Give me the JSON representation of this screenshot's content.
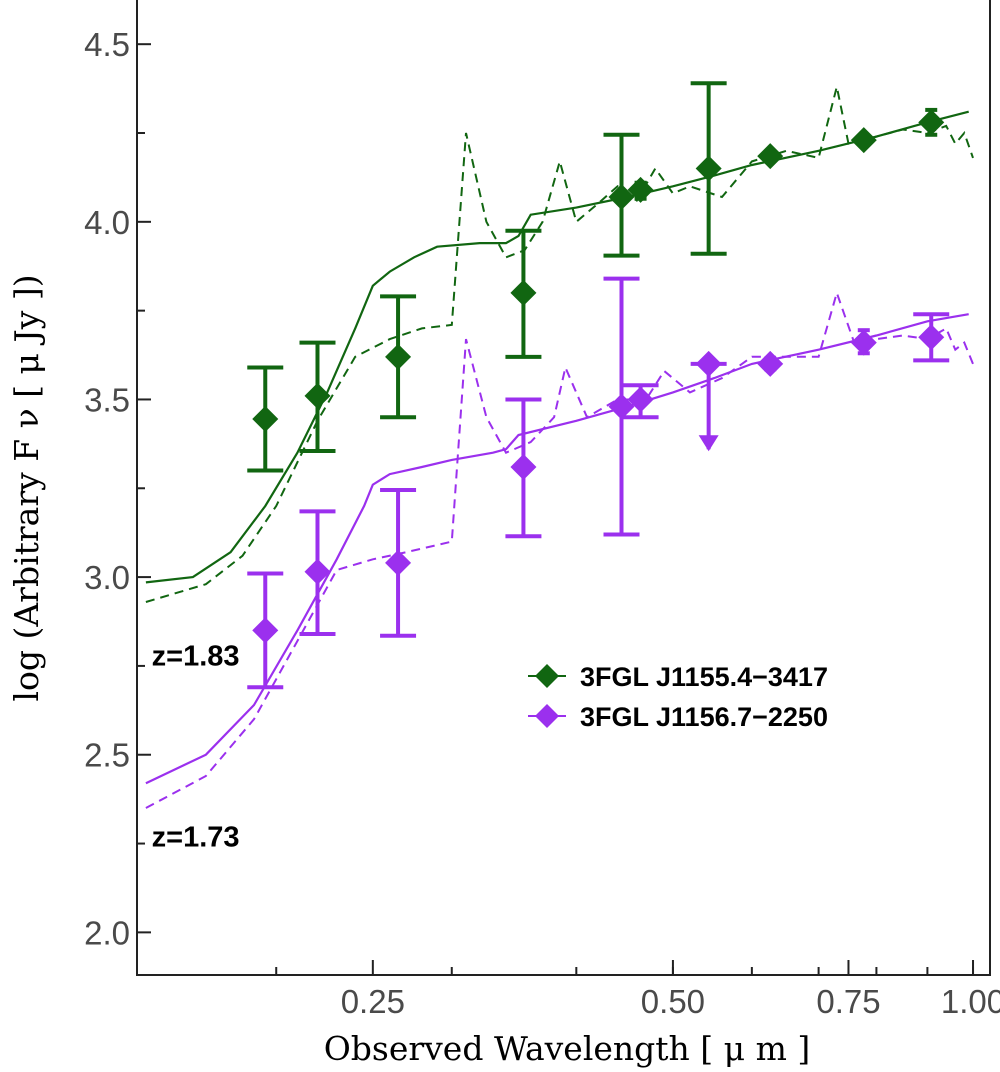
{
  "chart_data": {
    "type": "line",
    "title": "",
    "xlabel": "Observed Wavelength [ μ m ]",
    "ylabel": "log (Arbitrary F ν [ μ Jy ])",
    "xscale": "log",
    "xlim": [
      0.145,
      1.04
    ],
    "ylim": [
      1.88,
      4.63
    ],
    "x_ticks": [
      0.25,
      0.5,
      0.75,
      1.0
    ],
    "x_tick_labels": [
      "0.25",
      "0.50",
      "0.75",
      "1.00"
    ],
    "y_ticks": [
      2.0,
      2.5,
      3.0,
      3.5,
      4.0,
      4.5
    ],
    "y_tick_labels": [
      "2.0",
      "2.5",
      "3.0",
      "3.5",
      "4.0",
      "4.5"
    ],
    "legend_position": "center-right",
    "annotations": [
      {
        "text": "z=1.83",
        "x": 0.15,
        "y": 2.78
      },
      {
        "text": "z=1.73",
        "x": 0.15,
        "y": 2.27
      }
    ],
    "series": [
      {
        "name": "3FGL J1155.4−3417",
        "color": "#116611",
        "points": [
          {
            "x": 0.195,
            "y": 3.445,
            "lo": 3.3,
            "hi": 3.59
          },
          {
            "x": 0.22,
            "y": 3.51,
            "lo": 3.355,
            "hi": 3.66
          },
          {
            "x": 0.265,
            "y": 3.62,
            "lo": 3.45,
            "hi": 3.79
          },
          {
            "x": 0.354,
            "y": 3.8,
            "lo": 3.62,
            "hi": 3.975
          },
          {
            "x": 0.444,
            "y": 4.07,
            "lo": 3.905,
            "hi": 4.245
          },
          {
            "x": 0.464,
            "y": 4.09,
            "lo": 4.065,
            "hi": 4.11
          },
          {
            "x": 0.543,
            "y": 4.15,
            "lo": 3.91,
            "hi": 4.39
          },
          {
            "x": 0.626,
            "y": 4.185,
            "lo": 4.175,
            "hi": 4.195
          },
          {
            "x": 0.777,
            "y": 4.23,
            "lo": 4.22,
            "hi": 4.24
          },
          {
            "x": 0.908,
            "y": 4.28,
            "lo": 4.245,
            "hi": 4.315
          }
        ],
        "model_solid": [
          [
            0.148,
            2.985
          ],
          [
            0.165,
            3.0
          ],
          [
            0.18,
            3.07
          ],
          [
            0.195,
            3.2
          ],
          [
            0.21,
            3.35
          ],
          [
            0.225,
            3.52
          ],
          [
            0.24,
            3.7
          ],
          [
            0.25,
            3.82
          ],
          [
            0.26,
            3.86
          ],
          [
            0.275,
            3.9
          ],
          [
            0.29,
            3.93
          ],
          [
            0.32,
            3.94
          ],
          [
            0.34,
            3.94
          ],
          [
            0.35,
            3.96
          ],
          [
            0.36,
            4.02
          ],
          [
            0.4,
            4.04
          ],
          [
            0.45,
            4.07
          ],
          [
            0.5,
            4.1
          ],
          [
            0.55,
            4.13
          ],
          [
            0.6,
            4.16
          ],
          [
            0.7,
            4.2
          ],
          [
            0.8,
            4.24
          ],
          [
            0.9,
            4.28
          ],
          [
            0.99,
            4.31
          ]
        ],
        "model_dashed": [
          [
            0.148,
            2.93
          ],
          [
            0.17,
            2.98
          ],
          [
            0.185,
            3.06
          ],
          [
            0.2,
            3.2
          ],
          [
            0.22,
            3.44
          ],
          [
            0.24,
            3.62
          ],
          [
            0.26,
            3.67
          ],
          [
            0.28,
            3.7
          ],
          [
            0.3,
            3.71
          ],
          [
            0.31,
            4.25
          ],
          [
            0.325,
            4.0
          ],
          [
            0.34,
            3.9
          ],
          [
            0.355,
            3.92
          ],
          [
            0.37,
            4.0
          ],
          [
            0.385,
            4.17
          ],
          [
            0.4,
            4.0
          ],
          [
            0.42,
            4.05
          ],
          [
            0.44,
            4.1
          ],
          [
            0.46,
            4.06
          ],
          [
            0.48,
            4.15
          ],
          [
            0.5,
            4.08
          ],
          [
            0.52,
            4.1
          ],
          [
            0.56,
            4.07
          ],
          [
            0.6,
            4.17
          ],
          [
            0.65,
            4.2
          ],
          [
            0.7,
            4.18
          ],
          [
            0.73,
            4.38
          ],
          [
            0.75,
            4.22
          ],
          [
            0.8,
            4.24
          ],
          [
            0.85,
            4.26
          ],
          [
            0.9,
            4.25
          ],
          [
            0.94,
            4.27
          ],
          [
            0.96,
            4.22
          ],
          [
            0.98,
            4.25
          ],
          [
            1.0,
            4.18
          ]
        ]
      },
      {
        "name": "3FGL J1156.7−2250",
        "color": "#9b30ee",
        "points": [
          {
            "x": 0.195,
            "y": 2.85,
            "lo": 2.69,
            "hi": 3.01
          },
          {
            "x": 0.22,
            "y": 3.015,
            "lo": 2.84,
            "hi": 3.185
          },
          {
            "x": 0.265,
            "y": 3.04,
            "lo": 2.835,
            "hi": 3.245
          },
          {
            "x": 0.354,
            "y": 3.31,
            "lo": 3.115,
            "hi": 3.5
          },
          {
            "x": 0.444,
            "y": 3.48,
            "lo": 3.12,
            "hi": 3.84
          },
          {
            "x": 0.464,
            "y": 3.5,
            "lo": 3.45,
            "hi": 3.54
          },
          {
            "x": 0.543,
            "y": 3.6,
            "lo": 3.36,
            "hi": 3.6,
            "upper_limit": true
          },
          {
            "x": 0.626,
            "y": 3.6,
            "lo": 3.585,
            "hi": 3.615
          },
          {
            "x": 0.777,
            "y": 3.66,
            "lo": 3.63,
            "hi": 3.695
          },
          {
            "x": 0.908,
            "y": 3.675,
            "lo": 3.61,
            "hi": 3.74
          }
        ],
        "model_solid": [
          [
            0.148,
            2.42
          ],
          [
            0.17,
            2.5
          ],
          [
            0.19,
            2.64
          ],
          [
            0.21,
            2.85
          ],
          [
            0.23,
            3.05
          ],
          [
            0.245,
            3.2
          ],
          [
            0.25,
            3.26
          ],
          [
            0.26,
            3.29
          ],
          [
            0.28,
            3.31
          ],
          [
            0.3,
            3.33
          ],
          [
            0.33,
            3.35
          ],
          [
            0.34,
            3.36
          ],
          [
            0.35,
            3.4
          ],
          [
            0.4,
            3.44
          ],
          [
            0.45,
            3.48
          ],
          [
            0.5,
            3.52
          ],
          [
            0.55,
            3.56
          ],
          [
            0.6,
            3.6
          ],
          [
            0.7,
            3.64
          ],
          [
            0.8,
            3.68
          ],
          [
            0.9,
            3.72
          ],
          [
            0.99,
            3.74
          ]
        ],
        "model_dashed": [
          [
            0.148,
            2.35
          ],
          [
            0.17,
            2.44
          ],
          [
            0.19,
            2.6
          ],
          [
            0.21,
            2.82
          ],
          [
            0.23,
            3.02
          ],
          [
            0.25,
            3.05
          ],
          [
            0.27,
            3.07
          ],
          [
            0.3,
            3.1
          ],
          [
            0.31,
            3.67
          ],
          [
            0.325,
            3.45
          ],
          [
            0.34,
            3.35
          ],
          [
            0.36,
            3.38
          ],
          [
            0.38,
            3.45
          ],
          [
            0.39,
            3.59
          ],
          [
            0.41,
            3.45
          ],
          [
            0.44,
            3.5
          ],
          [
            0.47,
            3.5
          ],
          [
            0.49,
            3.58
          ],
          [
            0.52,
            3.52
          ],
          [
            0.56,
            3.56
          ],
          [
            0.6,
            3.62
          ],
          [
            0.65,
            3.62
          ],
          [
            0.7,
            3.62
          ],
          [
            0.73,
            3.8
          ],
          [
            0.76,
            3.66
          ],
          [
            0.8,
            3.67
          ],
          [
            0.85,
            3.68
          ],
          [
            0.9,
            3.67
          ],
          [
            0.94,
            3.7
          ],
          [
            0.96,
            3.64
          ],
          [
            0.98,
            3.66
          ],
          [
            1.0,
            3.6
          ]
        ]
      }
    ]
  }
}
